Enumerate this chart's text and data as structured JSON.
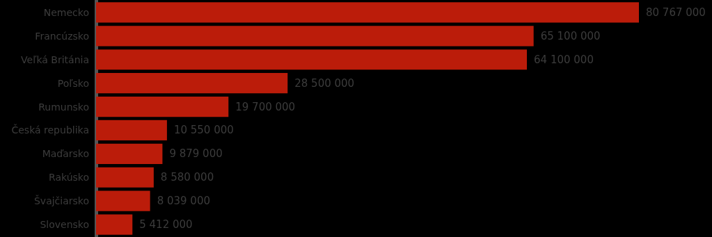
{
  "chart_data": {
    "type": "bar",
    "orientation": "horizontal",
    "categories": [
      "Nemecko",
      "Francúzsko",
      "Veľká Británia",
      "Poľsko",
      "Rumunsko",
      "Česká republika",
      "Maďarsko",
      "Rakúsko",
      "Švajčiarsko",
      "Slovensko"
    ],
    "values": [
      80767000,
      65100000,
      64100000,
      28500000,
      19700000,
      10550000,
      9879000,
      8580000,
      8039000,
      5412000
    ],
    "color": "#bb1c0a",
    "data_labels": true
  }
}
